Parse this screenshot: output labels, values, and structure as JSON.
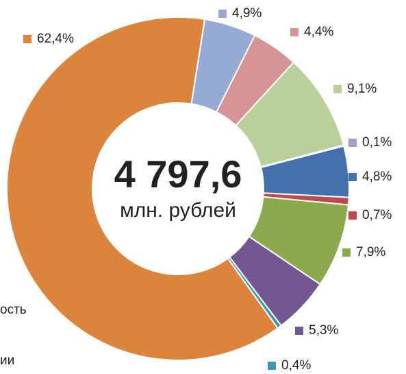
{
  "chart_data": {
    "type": "donut",
    "center_value": "4 797,6",
    "center_label": "млн. рублей",
    "values": [
      4.9,
      4.4,
      9.1,
      0.1,
      4.8,
      0.7,
      7.9,
      5.3,
      0.4,
      62.4
    ],
    "value_labels": [
      "4,9%",
      "4,4%",
      "9,1%",
      "0,1%",
      "4,8%",
      "0,7%",
      "7,9%",
      "5,3%",
      "0,4%",
      "62,4%"
    ],
    "colors": [
      "#95abd5",
      "#d69494",
      "#b9d09a",
      "#ab9ac8",
      "#4470ae",
      "#bf4a47",
      "#8aaa4d",
      "#725792",
      "#3a98b4",
      "#dd843c"
    ],
    "annotations": [
      "ость",
      "ии"
    ]
  }
}
